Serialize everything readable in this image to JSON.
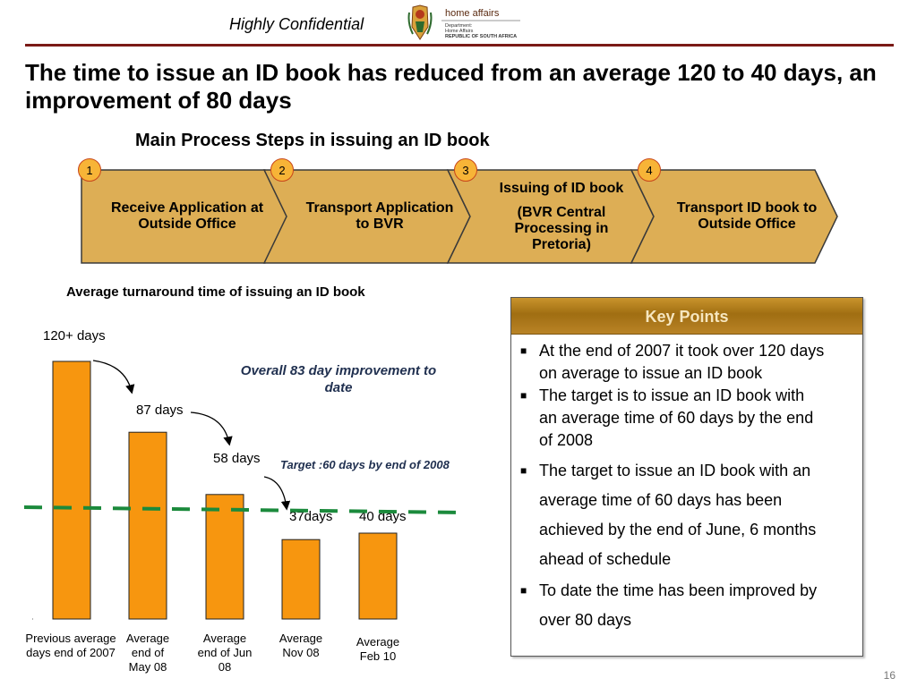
{
  "header": {
    "confidential": "Highly Confidential"
  },
  "logo": {
    "line1": "home affairs",
    "line2": "Department:",
    "line3": "Home Affairs",
    "line4": "REPUBLIC OF SOUTH AFRICA"
  },
  "title": "The time to issue an ID book has reduced from an average 120 to 40 days, an improvement of 80 days",
  "process": {
    "title": "Main Process Steps in issuing an ID book",
    "steps": [
      {
        "number": "1",
        "lines": [
          "Receive Application at",
          "Outside Office"
        ]
      },
      {
        "number": "2",
        "lines": [
          "Transport Application",
          "to BVR"
        ]
      },
      {
        "number": "3",
        "lines": [
          "Issuing of ID book",
          "(BVR Central",
          "Processing in",
          "Pretoria)"
        ]
      },
      {
        "number": "4",
        "lines": [
          "Transport ID book to",
          "Outside Office"
        ]
      }
    ],
    "colors": {
      "fill": "#ddae55",
      "stroke": "#3a3a3a",
      "badge": "#f7b437"
    }
  },
  "chart_title": "Average turnaround time of issuing an ID book",
  "chart_data": {
    "type": "bar",
    "categories": [
      [
        "Previous average",
        "days end of 2007"
      ],
      [
        "Average",
        "end of",
        "May 08"
      ],
      [
        "Average",
        "end of Jun",
        "08"
      ],
      [
        "Average",
        "Nov 08"
      ],
      [
        "Average",
        "Feb 10"
      ]
    ],
    "values": [
      120,
      87,
      58,
      37,
      40
    ],
    "value_labels": [
      "120+ days",
      "87 days",
      "58 days",
      "37days",
      "40 days"
    ],
    "ylim": [
      0,
      120
    ],
    "target": {
      "value": 60,
      "label": "Target :60 days by end of 2008"
    },
    "annotation": "Overall 83 day improvement to date",
    "colors": {
      "bar": "#f7960f",
      "bar_stroke": "#222222",
      "target": "#1b8a3c"
    }
  },
  "key_points": {
    "header": "Key Points",
    "items": [
      [
        "At the end of 2007 it took over 120 days",
        "on average to issue an ID book"
      ],
      [
        "The target is to issue an ID book with",
        "an average time of 60 days by the end",
        "of 2008"
      ],
      [
        "The target to issue an ID book with an",
        "average time of 60 days has been",
        "achieved by the end of June, 6 months",
        "ahead of schedule"
      ],
      [
        "To date the time has been improved by",
        "over 80 days"
      ]
    ],
    "bullet": "■"
  },
  "page_number": "16"
}
